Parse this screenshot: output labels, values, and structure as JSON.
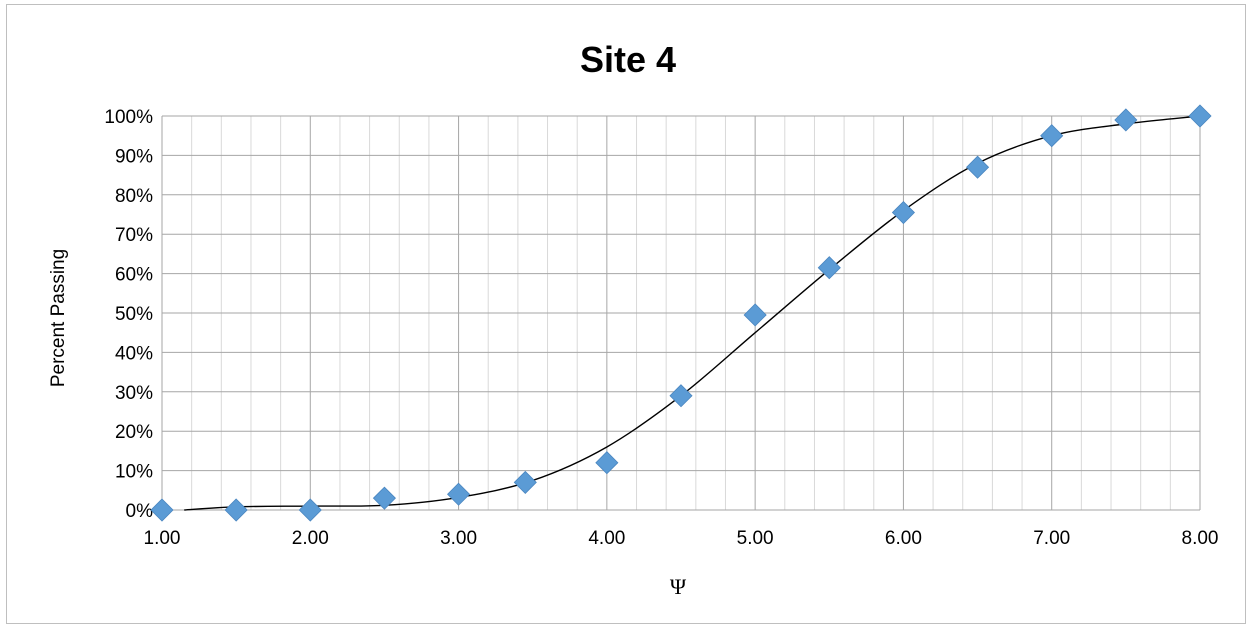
{
  "chart_data": {
    "type": "scatter",
    "title": "Site 4",
    "xlabel": "Ψ",
    "ylabel": "Percent Passing",
    "xlim": [
      1.0,
      8.0
    ],
    "ylim": [
      0,
      100
    ],
    "x_ticks": [
      "1.00",
      "2.00",
      "3.00",
      "4.00",
      "5.00",
      "6.00",
      "7.00",
      "8.00"
    ],
    "y_ticks": [
      "0%",
      "10%",
      "20%",
      "30%",
      "40%",
      "50%",
      "60%",
      "70%",
      "80%",
      "90%",
      "100%"
    ],
    "grid": true,
    "legend": "none",
    "marker_color": "#5b9bd5",
    "line_color": "#000000",
    "series": [
      {
        "type": "scatter",
        "marker": "diamond",
        "x": [
          1.0,
          1.5,
          2.0,
          2.5,
          3.0,
          3.45,
          4.0,
          4.5,
          5.0,
          5.5,
          6.0,
          6.5,
          7.0,
          7.5,
          8.0
        ],
        "y": [
          0,
          0,
          0,
          3,
          4,
          7,
          12,
          29,
          49.5,
          61.5,
          75.5,
          87,
          95,
          99,
          100
        ]
      },
      {
        "type": "line",
        "style": "smooth-trend",
        "x": [
          1.15,
          1.5,
          2.0,
          2.5,
          3.0,
          3.5,
          4.0,
          4.5,
          5.0,
          5.5,
          6.0,
          6.5,
          7.0,
          7.5,
          8.0
        ],
        "y": [
          0,
          0.8,
          1.0,
          1.2,
          3.2,
          7.5,
          16,
          29,
          45,
          61,
          76,
          88,
          95,
          98,
          100
        ]
      }
    ]
  }
}
